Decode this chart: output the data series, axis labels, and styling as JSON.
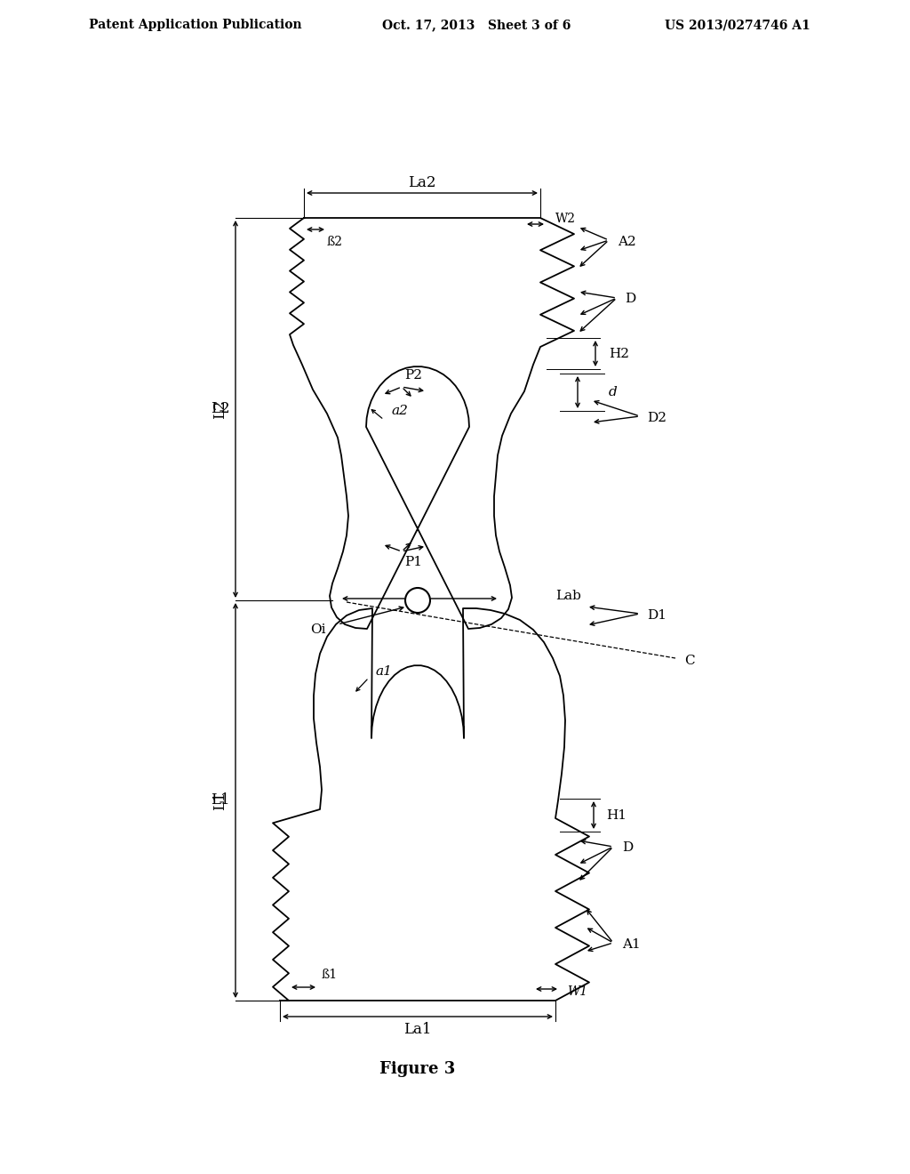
{
  "bg_color": "#ffffff",
  "header_left": "Patent Application Publication",
  "header_center": "Oct. 17, 2013   Sheet 3 of 6",
  "header_right": "US 2013/0274746 A1",
  "figure_label": "Figure 3"
}
